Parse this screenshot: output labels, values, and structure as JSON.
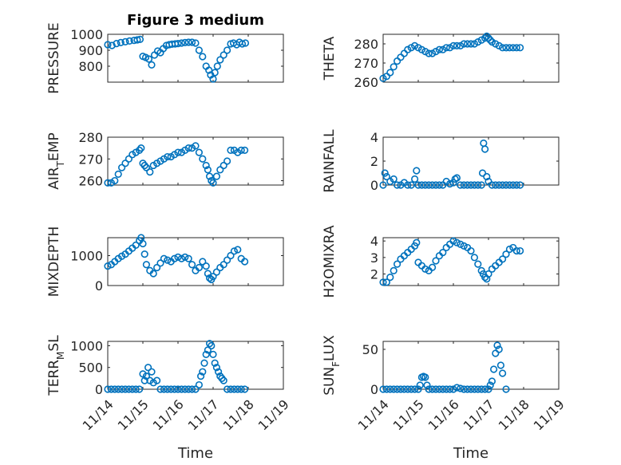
{
  "chart_data": [
    {
      "type": "scatter",
      "title": "Figure 3 medium",
      "ylabel": "PRESSURE",
      "ylim": [
        700,
        1000
      ],
      "yticks": [
        800,
        900,
        1000
      ],
      "xlim": [
        0,
        5
      ],
      "xticks": [
        0,
        1,
        2,
        3,
        4,
        5
      ],
      "xticklabels": [],
      "xlabel": "",
      "grid": true,
      "series": [
        {
          "x": [
            0.0,
            0.12,
            0.25,
            0.37,
            0.5,
            0.62,
            0.75,
            0.84,
            0.92,
            1.0,
            1.08,
            1.17,
            1.25,
            1.33,
            1.42,
            1.5,
            1.58,
            1.67,
            1.75,
            1.83,
            1.92,
            2.0,
            2.1,
            2.2,
            2.3,
            2.4,
            2.5,
            2.6,
            2.7,
            2.8,
            2.88,
            2.93,
            3.0,
            3.05,
            3.12,
            3.2,
            3.3,
            3.4,
            3.5,
            3.58,
            3.67,
            3.75,
            3.83,
            3.92
          ],
          "y": [
            935,
            930,
            942,
            948,
            953,
            958,
            962,
            965,
            968,
            862,
            855,
            845,
            808,
            870,
            895,
            885,
            910,
            930,
            935,
            938,
            940,
            942,
            945,
            948,
            950,
            950,
            945,
            900,
            860,
            800,
            775,
            745,
            720,
            760,
            800,
            840,
            870,
            900,
            940,
            945,
            935,
            950,
            940,
            945
          ]
        }
      ]
    },
    {
      "type": "scatter",
      "title": "",
      "ylabel": "THETA",
      "ylim": [
        260,
        285
      ],
      "yticks": [
        260,
        270,
        280
      ],
      "xlim": [
        0,
        5
      ],
      "xticks": [
        0,
        1,
        2,
        3,
        4,
        5
      ],
      "xticklabels": [],
      "xlabel": "",
      "grid": true,
      "series": [
        {
          "x": [
            0.0,
            0.1,
            0.2,
            0.3,
            0.4,
            0.5,
            0.6,
            0.7,
            0.8,
            0.9,
            1.0,
            1.1,
            1.2,
            1.3,
            1.4,
            1.5,
            1.6,
            1.7,
            1.8,
            1.9,
            2.0,
            2.1,
            2.2,
            2.3,
            2.4,
            2.5,
            2.6,
            2.7,
            2.8,
            2.9,
            2.95,
            3.0,
            3.05,
            3.1,
            3.2,
            3.3,
            3.4,
            3.5,
            3.6,
            3.7,
            3.8,
            3.9
          ],
          "y": [
            262,
            263,
            265,
            268,
            271,
            273,
            275,
            277,
            278,
            279,
            278,
            277,
            276,
            275,
            275,
            276,
            277,
            277,
            278,
            278,
            279,
            279,
            279,
            280,
            280,
            280,
            280,
            281,
            282,
            283,
            284,
            283,
            282,
            281,
            280,
            279,
            278,
            278,
            278,
            278,
            278,
            278
          ]
        }
      ]
    },
    {
      "type": "scatter",
      "title": "",
      "ylabel": "AIR_TEMP",
      "ylim": [
        258,
        280
      ],
      "yticks": [
        260,
        270,
        280
      ],
      "xlim": [
        0,
        5
      ],
      "xticks": [
        0,
        1,
        2,
        3,
        4,
        5
      ],
      "xticklabels": [],
      "xlabel": "",
      "grid": true,
      "series": [
        {
          "x": [
            0.0,
            0.1,
            0.2,
            0.3,
            0.4,
            0.5,
            0.6,
            0.7,
            0.8,
            0.9,
            0.95,
            1.0,
            1.05,
            1.1,
            1.2,
            1.3,
            1.4,
            1.5,
            1.6,
            1.7,
            1.8,
            1.9,
            2.0,
            2.1,
            2.2,
            2.3,
            2.4,
            2.5,
            2.6,
            2.7,
            2.8,
            2.85,
            2.9,
            2.95,
            3.0,
            3.1,
            3.2,
            3.3,
            3.4,
            3.5,
            3.6,
            3.7,
            3.8,
            3.9
          ],
          "y": [
            259,
            259,
            260,
            263,
            266,
            268,
            270,
            272,
            273,
            274,
            275,
            268,
            267,
            266,
            264,
            267,
            268,
            269,
            270,
            271,
            271,
            272,
            273,
            273,
            274,
            275,
            275,
            276,
            273,
            270,
            267,
            265,
            262,
            260,
            259,
            262,
            265,
            267,
            269,
            274,
            274,
            273,
            274,
            274
          ]
        }
      ]
    },
    {
      "type": "scatter",
      "title": "",
      "ylabel": "RAINFALL",
      "ylim": [
        0,
        4
      ],
      "yticks": [
        0,
        2,
        4
      ],
      "xlim": [
        0,
        5
      ],
      "xticks": [
        0,
        1,
        2,
        3,
        4,
        5
      ],
      "xticklabels": [],
      "xlabel": "",
      "grid": true,
      "series": [
        {
          "x": [
            0.0,
            0.05,
            0.1,
            0.2,
            0.3,
            0.4,
            0.5,
            0.6,
            0.7,
            0.8,
            0.9,
            0.95,
            1.0,
            1.1,
            1.2,
            1.3,
            1.4,
            1.5,
            1.6,
            1.7,
            1.8,
            1.9,
            2.0,
            2.05,
            2.1,
            2.2,
            2.3,
            2.4,
            2.5,
            2.6,
            2.7,
            2.8,
            2.83,
            2.86,
            2.9,
            2.95,
            3.0,
            3.1,
            3.2,
            3.3,
            3.4,
            3.5,
            3.6,
            3.7,
            3.8,
            3.9
          ],
          "y": [
            0,
            1,
            0.7,
            0.3,
            0.5,
            0,
            0,
            0.2,
            0,
            0,
            0.5,
            1.2,
            0,
            0,
            0,
            0,
            0,
            0,
            0,
            0,
            0.3,
            0.1,
            0.2,
            0.5,
            0.6,
            0,
            0,
            0,
            0,
            0,
            0,
            0,
            1.0,
            3.5,
            3.0,
            0.7,
            0.3,
            0,
            0,
            0,
            0,
            0,
            0,
            0,
            0,
            0
          ]
        }
      ]
    },
    {
      "type": "scatter",
      "title": "",
      "ylabel": "MIXDEPTH",
      "ylim": [
        0,
        1600
      ],
      "yticks": [
        0,
        1000
      ],
      "xlim": [
        0,
        5
      ],
      "xticks": [
        0,
        1,
        2,
        3,
        4,
        5
      ],
      "xticklabels": [],
      "xlabel": "",
      "grid": true,
      "series": [
        {
          "x": [
            0.0,
            0.1,
            0.2,
            0.3,
            0.4,
            0.5,
            0.6,
            0.7,
            0.8,
            0.9,
            0.95,
            1.0,
            1.05,
            1.1,
            1.2,
            1.3,
            1.4,
            1.5,
            1.6,
            1.7,
            1.8,
            1.9,
            2.0,
            2.1,
            2.2,
            2.3,
            2.4,
            2.5,
            2.6,
            2.7,
            2.8,
            2.85,
            2.9,
            2.95,
            3.0,
            3.1,
            3.2,
            3.3,
            3.4,
            3.5,
            3.6,
            3.7,
            3.8,
            3.9
          ],
          "y": [
            650,
            700,
            800,
            900,
            980,
            1050,
            1150,
            1250,
            1350,
            1500,
            1600,
            1400,
            1050,
            700,
            500,
            400,
            600,
            750,
            900,
            850,
            800,
            900,
            950,
            900,
            950,
            900,
            700,
            500,
            600,
            800,
            650,
            400,
            250,
            200,
            300,
            450,
            600,
            700,
            850,
            1000,
            1150,
            1200,
            900,
            800
          ]
        }
      ]
    },
    {
      "type": "scatter",
      "title": "",
      "ylabel": "H2OMIXRA",
      "ylim": [
        1.3,
        4.2
      ],
      "yticks": [
        2,
        3,
        4
      ],
      "xlim": [
        0,
        5
      ],
      "xticks": [
        0,
        1,
        2,
        3,
        4,
        5
      ],
      "xticklabels": [],
      "xlabel": "",
      "grid": true,
      "series": [
        {
          "x": [
            0.0,
            0.1,
            0.2,
            0.3,
            0.4,
            0.5,
            0.6,
            0.7,
            0.8,
            0.9,
            0.95,
            1.0,
            1.1,
            1.2,
            1.3,
            1.4,
            1.5,
            1.6,
            1.7,
            1.8,
            1.9,
            2.0,
            2.1,
            2.2,
            2.3,
            2.4,
            2.5,
            2.6,
            2.7,
            2.8,
            2.85,
            2.9,
            2.95,
            3.0,
            3.1,
            3.2,
            3.3,
            3.4,
            3.5,
            3.6,
            3.7,
            3.8,
            3.9
          ],
          "y": [
            1.5,
            1.5,
            1.8,
            2.2,
            2.6,
            2.9,
            3.1,
            3.3,
            3.5,
            3.7,
            3.9,
            2.7,
            2.5,
            2.3,
            2.2,
            2.4,
            2.8,
            3.1,
            3.3,
            3.6,
            3.8,
            4.0,
            3.9,
            3.8,
            3.7,
            3.6,
            3.4,
            3.0,
            2.6,
            2.2,
            2.0,
            1.8,
            1.7,
            2.0,
            2.3,
            2.5,
            2.7,
            2.9,
            3.2,
            3.5,
            3.6,
            3.4,
            3.4
          ]
        }
      ]
    },
    {
      "type": "scatter",
      "title": "",
      "ylabel": "TERR_MSL",
      "ylim": [
        0,
        1100
      ],
      "yticks": [
        0,
        500,
        1000
      ],
      "xlim": [
        0,
        5
      ],
      "xticks": [
        0,
        1,
        2,
        3,
        4,
        5
      ],
      "xticklabels": [
        "11/14",
        "11/15",
        "11/16",
        "11/17",
        "11/18",
        "11/19"
      ],
      "xlabel": "Time",
      "grid": true,
      "series": [
        {
          "x": [
            0.0,
            0.1,
            0.2,
            0.3,
            0.4,
            0.5,
            0.6,
            0.7,
            0.8,
            0.9,
            1.0,
            1.05,
            1.1,
            1.15,
            1.2,
            1.25,
            1.3,
            1.4,
            1.5,
            1.6,
            1.7,
            1.8,
            1.9,
            2.0,
            2.1,
            2.2,
            2.3,
            2.4,
            2.5,
            2.6,
            2.65,
            2.7,
            2.75,
            2.8,
            2.85,
            2.9,
            2.95,
            3.0,
            3.05,
            3.1,
            3.15,
            3.2,
            3.25,
            3.3,
            3.4,
            3.5,
            3.6,
            3.7,
            3.8,
            3.9
          ],
          "y": [
            0,
            0,
            0,
            0,
            0,
            0,
            0,
            0,
            0,
            0,
            350,
            200,
            300,
            500,
            200,
            400,
            150,
            200,
            0,
            0,
            0,
            0,
            0,
            0,
            0,
            0,
            0,
            0,
            0,
            100,
            300,
            400,
            600,
            800,
            900,
            1050,
            1000,
            800,
            600,
            500,
            400,
            300,
            250,
            200,
            0,
            0,
            0,
            0,
            0,
            0
          ]
        }
      ]
    },
    {
      "type": "scatter",
      "title": "",
      "ylabel": "SUN_FLUX",
      "ylim": [
        0,
        60
      ],
      "yticks": [
        0,
        50
      ],
      "xlim": [
        0,
        5
      ],
      "xticks": [
        0,
        1,
        2,
        3,
        4,
        5
      ],
      "xticklabels": [
        "11/14",
        "11/15",
        "11/16",
        "11/17",
        "11/18",
        "11/19"
      ],
      "xlabel": "Time",
      "grid": true,
      "series": [
        {
          "x": [
            0.0,
            0.1,
            0.2,
            0.3,
            0.4,
            0.5,
            0.6,
            0.7,
            0.8,
            0.9,
            1.0,
            1.05,
            1.1,
            1.15,
            1.2,
            1.25,
            1.3,
            1.4,
            1.5,
            1.6,
            1.7,
            1.8,
            1.9,
            2.0,
            2.1,
            2.2,
            2.3,
            2.4,
            2.5,
            2.6,
            2.7,
            2.8,
            2.9,
            3.0,
            3.05,
            3.1,
            3.15,
            3.2,
            3.25,
            3.3,
            3.35,
            3.4,
            3.5
          ],
          "y": [
            0,
            0,
            0,
            0,
            0,
            0,
            0,
            0,
            0,
            0,
            0,
            5,
            15,
            16,
            15,
            5,
            0,
            0,
            0,
            0,
            0,
            0,
            0,
            0,
            2,
            1,
            0,
            0,
            0,
            0,
            0,
            0,
            0,
            0,
            5,
            10,
            25,
            45,
            55,
            50,
            30,
            20,
            0
          ]
        }
      ]
    }
  ],
  "colors": {
    "marker": "#0072BD"
  }
}
